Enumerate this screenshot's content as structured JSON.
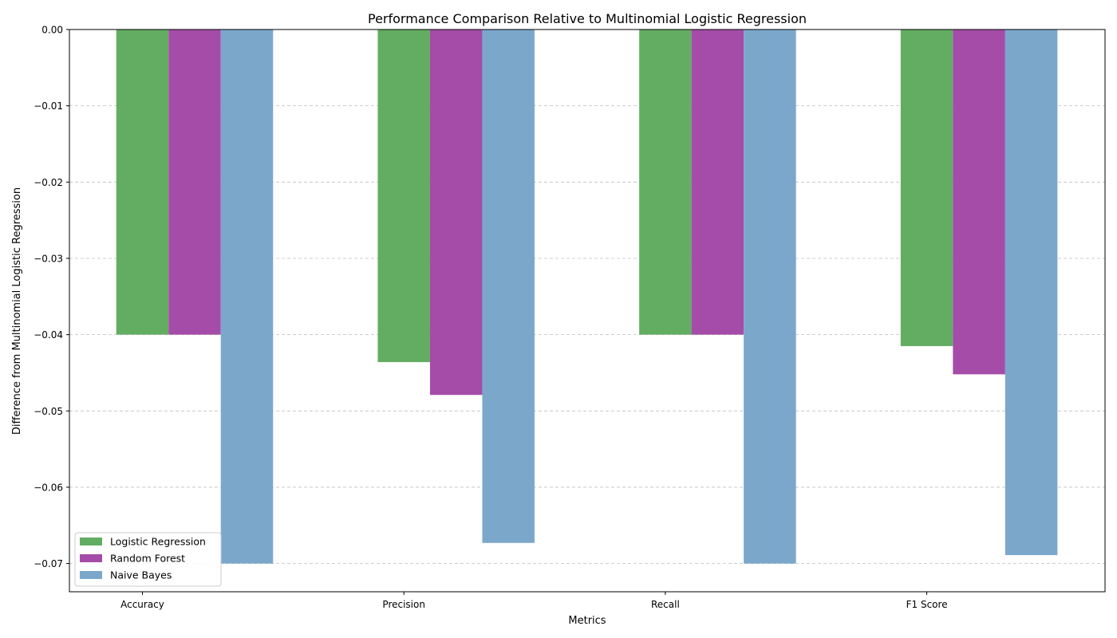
{
  "chart_data": {
    "type": "bar",
    "title": "Performance Comparison Relative to Multinomial Logistic Regression",
    "xlabel": "Metrics",
    "ylabel": "Difference from Multinomial Logistic Regression",
    "categories": [
      "Accuracy",
      "Precision",
      "Recall",
      "F1 Score"
    ],
    "series": [
      {
        "name": "Logistic Regression",
        "color": "#63ad63",
        "values": [
          -0.04,
          -0.0436,
          -0.04,
          -0.0415
        ]
      },
      {
        "name": "Random Forest",
        "color": "#a54ca8",
        "values": [
          -0.04,
          -0.0479,
          -0.04,
          -0.0452
        ]
      },
      {
        "name": "Naive Bayes",
        "color": "#7ba7cb",
        "values": [
          -0.07,
          -0.0673,
          -0.07,
          -0.0689
        ]
      }
    ],
    "ylim": [
      -0.0737,
      0.0
    ],
    "yticks": [
      0.0,
      -0.01,
      -0.02,
      -0.03,
      -0.04,
      -0.05,
      -0.06,
      -0.07
    ],
    "ytick_labels": [
      "0.00",
      "−0.01",
      "−0.02",
      "−0.03",
      "−0.04",
      "−0.05",
      "−0.06",
      "−0.07"
    ],
    "grid": {
      "y": true,
      "style": "dashed"
    },
    "legend": {
      "position": "lower-left"
    }
  }
}
